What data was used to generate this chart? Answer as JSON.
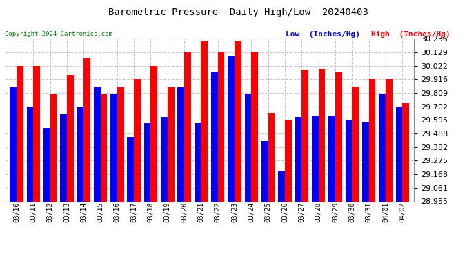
{
  "title": "Barometric Pressure  Daily High/Low  20240403",
  "copyright": "Copyright 2024 Cartronics.com",
  "legend_low": "Low  (Inches/Hg)",
  "legend_high": "High  (Inches/Hg)",
  "low_color": "#0000ff",
  "high_color": "#ff0000",
  "background_color": "#ffffff",
  "grid_color": "#c8c8c8",
  "ylim_min": 28.955,
  "ylim_max": 30.236,
  "yticks": [
    28.955,
    29.061,
    29.168,
    29.275,
    29.382,
    29.488,
    29.595,
    29.702,
    29.809,
    29.916,
    30.022,
    30.129,
    30.236
  ],
  "dates": [
    "03/10",
    "03/11",
    "03/12",
    "03/13",
    "03/14",
    "03/15",
    "03/16",
    "03/17",
    "03/18",
    "03/19",
    "03/20",
    "03/21",
    "03/22",
    "03/23",
    "03/24",
    "03/25",
    "03/26",
    "03/27",
    "03/28",
    "03/29",
    "03/30",
    "03/31",
    "04/01",
    "04/02"
  ],
  "low_values": [
    29.85,
    29.7,
    29.53,
    29.64,
    29.7,
    29.85,
    29.8,
    29.46,
    29.57,
    29.62,
    29.85,
    29.57,
    29.97,
    30.1,
    29.8,
    29.43,
    29.19,
    29.62,
    29.63,
    29.63,
    29.59,
    29.58,
    29.8,
    29.7
  ],
  "high_values": [
    30.02,
    30.02,
    29.8,
    29.95,
    30.08,
    29.8,
    29.85,
    29.92,
    30.02,
    29.85,
    30.13,
    30.22,
    30.13,
    30.22,
    30.13,
    29.65,
    29.6,
    29.99,
    30.0,
    29.97,
    29.86,
    29.92,
    29.92,
    29.73
  ],
  "bar_width": 0.4,
  "figwidth": 6.9,
  "figheight": 3.75,
  "dpi": 100
}
